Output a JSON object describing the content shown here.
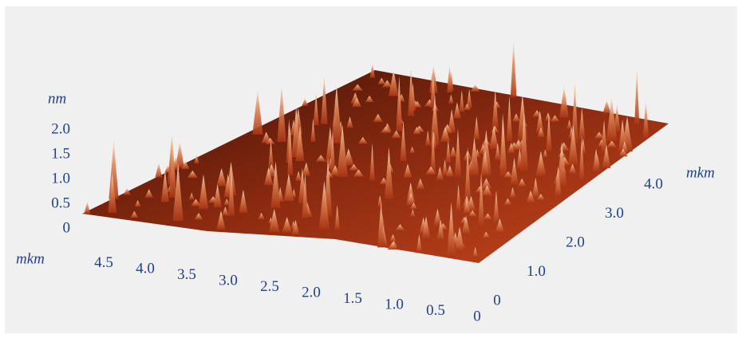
{
  "chart_data": {
    "type": "surface3d",
    "zlabel": "nm",
    "xlabel": "mkm",
    "ylabel": "mkm",
    "zticks": [
      0,
      0.5,
      {
        "value": 1,
        "label": "1.0"
      },
      1.5,
      {
        "value": 2,
        "label": "2.0"
      }
    ],
    "xticks": [
      4.5,
      {
        "value": 4,
        "label": "4.0"
      },
      3.5,
      {
        "value": 3,
        "label": "3.0"
      },
      2.5,
      {
        "value": 2,
        "label": "2.0"
      },
      1.5,
      {
        "value": 1,
        "label": "1.0"
      },
      0.5,
      0
    ],
    "yticks": [
      0,
      {
        "value": 1,
        "label": "1.0"
      },
      {
        "value": 2,
        "label": "2.0"
      },
      {
        "value": 3,
        "label": "3.0"
      },
      {
        "value": 4,
        "label": "4.0"
      }
    ]
  }
}
